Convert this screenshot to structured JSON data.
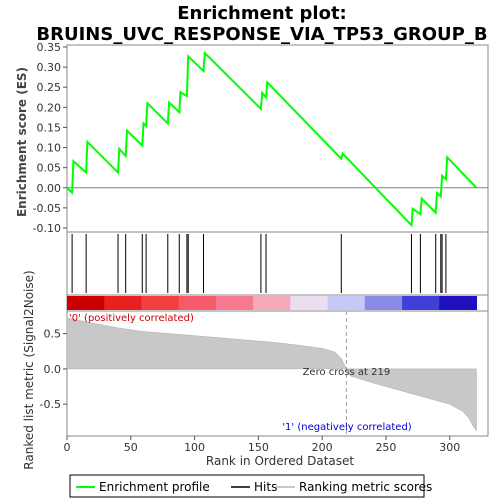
{
  "chart_data": {
    "type": "line",
    "title": "Enrichment plot:",
    "subtitle": "BRUINS_UVC_RESPONSE_VIA_TP53_GROUP_B",
    "top_panel": {
      "ylabel": "Enrichment score (ES)",
      "ylim": [
        -0.11,
        0.355
      ],
      "yticks": [
        -0.1,
        -0.05,
        0.0,
        0.05,
        0.1,
        0.15,
        0.2,
        0.25,
        0.3,
        0.35
      ],
      "ytick_labels": [
        "-0.10",
        "-0.05",
        "0.00",
        "0.05",
        "0.10",
        "0.15",
        "0.20",
        "0.25",
        "0.30",
        "0.35"
      ],
      "series": [
        {
          "name": "Enrichment profile",
          "color": "#00ff00",
          "x": [
            0,
            4,
            5,
            15,
            16,
            40,
            41,
            46,
            47,
            59,
            60,
            62,
            63,
            79,
            80,
            88,
            89,
            94,
            95,
            107,
            108,
            152,
            153,
            156,
            157,
            215,
            216,
            270,
            271,
            277,
            278,
            289,
            290,
            293,
            294,
            297,
            298,
            321
          ],
          "y": [
            0.0,
            -0.012,
            0.066,
            0.038,
            0.114,
            0.038,
            0.097,
            0.079,
            0.142,
            0.105,
            0.16,
            0.154,
            0.21,
            0.16,
            0.212,
            0.188,
            0.238,
            0.228,
            0.327,
            0.29,
            0.335,
            0.196,
            0.236,
            0.225,
            0.262,
            0.072,
            0.085,
            -0.093,
            -0.052,
            -0.066,
            -0.027,
            -0.062,
            -0.013,
            -0.022,
            0.03,
            0.021,
            0.076,
            0.0
          ]
        }
      ]
    },
    "hits": [
      4,
      15,
      40,
      46,
      59,
      62,
      79,
      88,
      94,
      95,
      107,
      152,
      156,
      215,
      270,
      277,
      289,
      293,
      294,
      297
    ],
    "bottom_panel": {
      "ylabel": "Ranked list metric (Signal2Noise)",
      "xlabel": "Rank in Ordered Dataset",
      "ylim": [
        -0.95,
        0.82
      ],
      "yticks": [
        -0.5,
        0.0,
        0.5
      ],
      "ytick_labels": [
        "-0.5",
        "0.0",
        "0.5"
      ],
      "xlim": [
        0,
        330
      ],
      "xticks": [
        0,
        50,
        100,
        150,
        200,
        250,
        300
      ],
      "xtick_labels": [
        "0",
        "50",
        "100",
        "150",
        "200",
        "250",
        "300"
      ],
      "metric_profile": {
        "x": [
          0,
          20,
          40,
          60,
          80,
          100,
          120,
          140,
          160,
          180,
          200,
          210,
          215,
          219,
          222,
          240,
          260,
          280,
          300,
          310,
          315,
          318,
          321
        ],
        "y": [
          0.72,
          0.65,
          0.58,
          0.53,
          0.5,
          0.47,
          0.44,
          0.41,
          0.38,
          0.34,
          0.29,
          0.24,
          0.15,
          0.0,
          -0.1,
          -0.2,
          -0.3,
          -0.4,
          -0.5,
          -0.6,
          -0.7,
          -0.8,
          -0.88
        ]
      },
      "zero_cross_label": "Zero cross at 219",
      "zero_cross_rank": 219,
      "pos_label": "'0' (positively correlated)",
      "neg_label": "'1' (negatively correlated)"
    },
    "colorbar_stops": [
      "#cc0000",
      "#e82020",
      "#f24040",
      "#f45a6a",
      "#f87a90",
      "#f8a8bc",
      "#e8e0f0",
      "#c8c8f8",
      "#8a8ae8",
      "#4040d8",
      "#2010c0"
    ],
    "n_total": 321,
    "legend": {
      "placement": "bottom",
      "items": [
        {
          "label": "Enrichment profile",
          "color": "#00ff00",
          "kind": "line"
        },
        {
          "label": "Hits",
          "color": "#000000",
          "kind": "line"
        },
        {
          "label": "Ranking metric scores",
          "color": "#c8c8c8",
          "kind": "line"
        }
      ]
    }
  }
}
